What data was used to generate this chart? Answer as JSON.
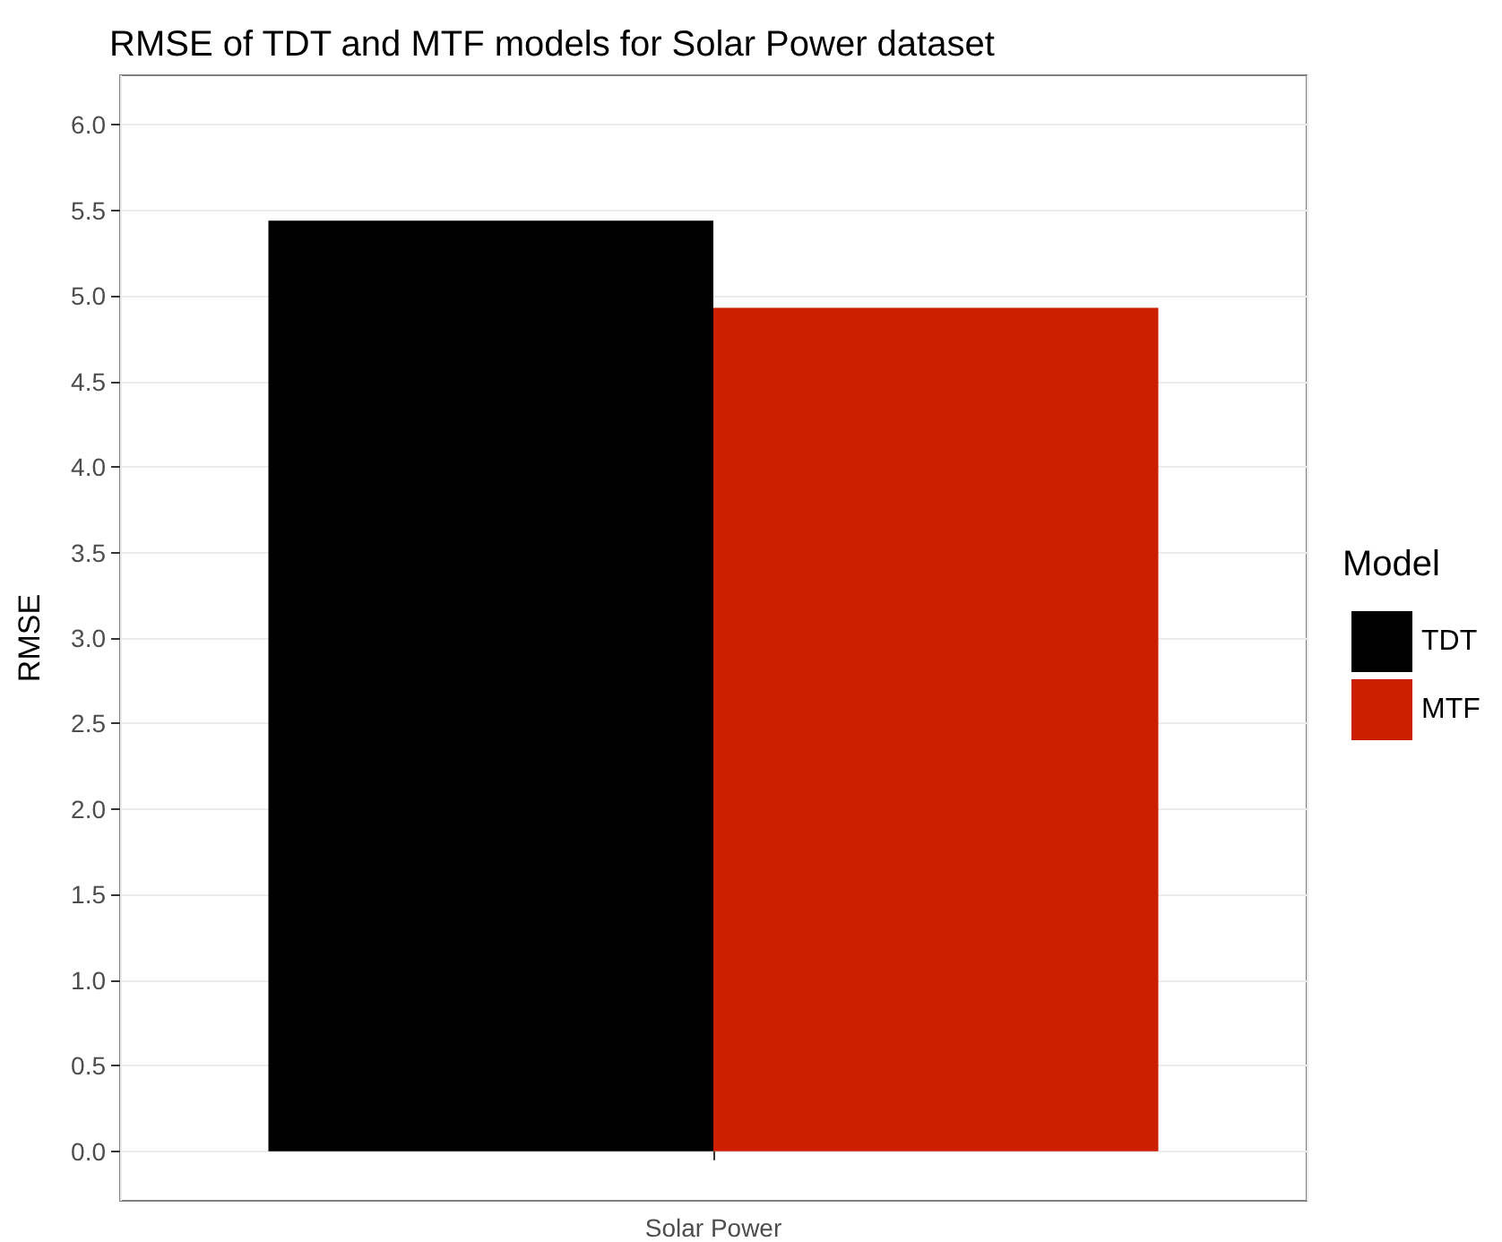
{
  "chart_data": {
    "type": "bar",
    "title": "RMSE of TDT and MTF models for Solar Power dataset",
    "ylabel": "RMSE",
    "legend_title": "Model",
    "categories": [
      "Solar Power"
    ],
    "series": [
      {
        "name": "TDT",
        "color": "#000000",
        "values": [
          5.44
        ]
      },
      {
        "name": "MTF",
        "color": "#cc1f00",
        "values": [
          4.93
        ]
      }
    ],
    "ylim": [
      -0.29,
      6.29
    ],
    "yticks": [
      {
        "value": 0,
        "label": "0.0"
      },
      {
        "value": 0.5,
        "label": "0.5"
      },
      {
        "value": 1,
        "label": "1.0"
      },
      {
        "value": 1.5,
        "label": "1.5"
      },
      {
        "value": 2,
        "label": "2.0"
      },
      {
        "value": 2.5,
        "label": "2.5"
      },
      {
        "value": 3,
        "label": "3.0"
      },
      {
        "value": 3.5,
        "label": "3.5"
      },
      {
        "value": 4,
        "label": "4.0"
      },
      {
        "value": 4.5,
        "label": "4.5"
      },
      {
        "value": 5,
        "label": "5.0"
      },
      {
        "value": 5.5,
        "label": "5.5"
      },
      {
        "value": 6,
        "label": "6.0"
      }
    ],
    "grid": true,
    "legend": "right"
  }
}
